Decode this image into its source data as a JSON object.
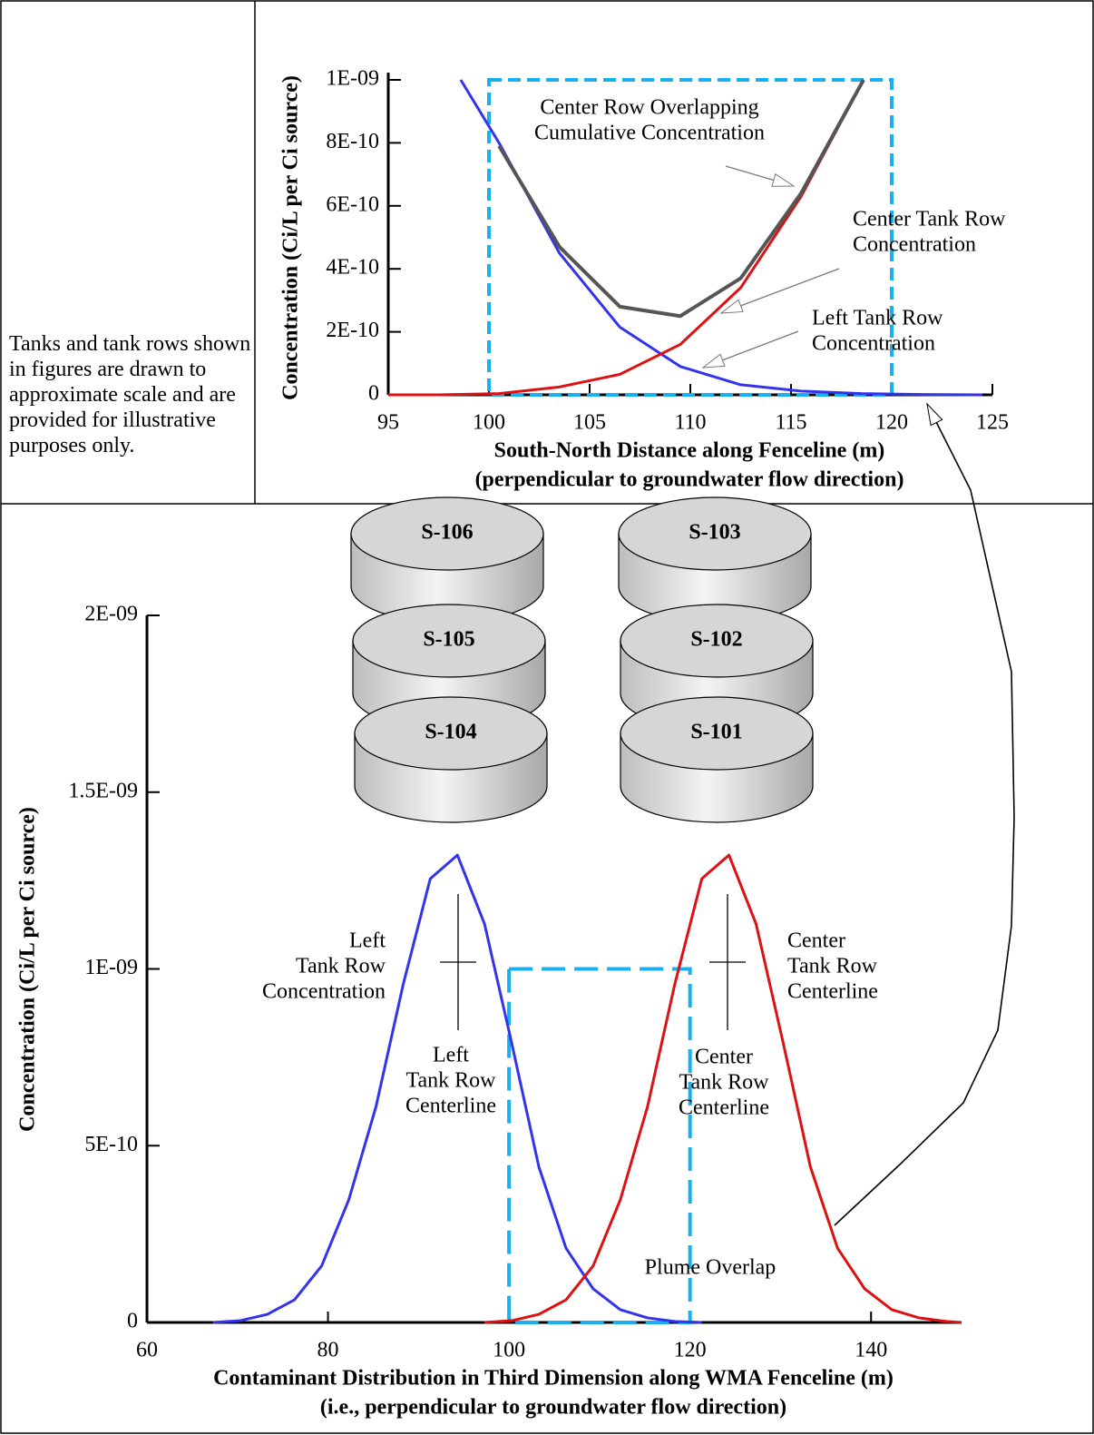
{
  "note": "Tanks and tank rows shown in figures are drawn to approximate scale and are provided for illustrative purposes only.",
  "tanks": [
    "S-106",
    "S-105",
    "S-104",
    "S-103",
    "S-102",
    "S-101"
  ],
  "chart_data": [
    {
      "type": "line",
      "xlabel": [
        "South-North Distance along Fenceline (m)",
        "(perpendicular to groundwater flow direction)"
      ],
      "ylabel": "Concentration (Ci/L per Ci source)",
      "xlim": [
        95,
        125
      ],
      "ylim": [
        0,
        1e-09
      ],
      "xticks": [
        95,
        100,
        105,
        110,
        115,
        120,
        125
      ],
      "yticks": [
        0,
        {
          "value": 2e-10,
          "label": "2E-10"
        },
        {
          "value": 4e-10,
          "label": "4E-10"
        },
        {
          "value": 6e-10,
          "label": "6E-10"
        },
        {
          "value": 8e-10,
          "label": "8E-10"
        },
        {
          "value": 1e-09,
          "label": "1E-09"
        }
      ],
      "series": [
        {
          "color": "#3333ee",
          "x": [
            98.6,
            100.5,
            103.5,
            106.5,
            109.5,
            112.5,
            115.5,
            118.5,
            121.5,
            124.5
          ],
          "values": [
            1e-09,
            8e-10,
            4.5e-10,
            2.15e-10,
            9e-11,
            3.2e-11,
            1.2e-11,
            4e-12,
            1e-12,
            0
          ]
        },
        {
          "color": "#dd1111",
          "x": [
            95,
            97.5,
            100.5,
            103.5,
            106.5,
            109.5,
            112.5,
            115.5,
            118.6
          ],
          "values": [
            0,
            0,
            4e-12,
            2.5e-11,
            6.5e-11,
            1.6e-10,
            3.4e-10,
            6.3e-10,
            1e-09
          ]
        },
        {
          "color": "#555555",
          "x": [
            100.5,
            103.5,
            106.5,
            109.5,
            112.5,
            115.5,
            118.6
          ],
          "values": [
            7.9e-10,
            4.7e-10,
            2.8e-10,
            2.5e-10,
            3.7e-10,
            6.4e-10,
            1e-09
          ]
        }
      ],
      "highlight": {
        "x": [
          100,
          120
        ],
        "y": [
          0,
          1e-09
        ],
        "color": "#1ab0ef"
      },
      "annotations": [
        [
          "Center Row Overlapping",
          "Cumulative Concentration"
        ],
        [
          "Center Tank Row",
          "Concentration"
        ],
        [
          "Left Tank Row",
          "Concentration"
        ]
      ]
    },
    {
      "type": "line",
      "xlabel": [
        "Contaminant Distribution in Third Dimension along WMA Fenceline (m)",
        "(i.e., perpendicular to groundwater flow direction)"
      ],
      "ylabel": "Concentration (Ci/L per Ci source)",
      "xlim": [
        60,
        150
      ],
      "ylim": [
        0,
        2e-09
      ],
      "xticks": [
        60,
        80,
        100,
        120,
        140
      ],
      "yticks": [
        0,
        {
          "value": 5e-10,
          "label": "5E-10"
        },
        {
          "value": 1e-09,
          "label": "1E-09"
        },
        {
          "value": 1.5e-09,
          "label": "1.5E-09"
        },
        {
          "value": 2e-09,
          "label": "2E-09"
        }
      ],
      "series": [
        {
          "color": "#3333ee",
          "x": [
            67.3,
            70.3,
            73.3,
            76.3,
            79.3,
            82.3,
            85.3,
            88.3,
            91.3,
            94.3,
            97.3,
            100.3,
            103.3,
            106.3,
            109.3,
            112.3,
            115.3,
            118.3,
            121.3
          ],
          "values": [
            0,
            5e-12,
            2.3e-11,
            6.4e-11,
            1.6e-10,
            3.47e-10,
            6.1e-10,
            9.55e-10,
            1.255e-09,
            1.322e-09,
            1.127e-09,
            7.9e-10,
            4.4e-10,
            2.1e-10,
            9.5e-11,
            3.6e-11,
            1.3e-11,
            3e-12,
            0
          ]
        },
        {
          "color": "#dd1111",
          "x": [
            97.3,
            100.3,
            103.3,
            106.3,
            109.3,
            112.3,
            115.3,
            118.3,
            121.3,
            124.3,
            127.3,
            130.3,
            133.3,
            136.3,
            139.3,
            142.3,
            145.3,
            148.3,
            150
          ],
          "values": [
            0,
            5e-12,
            2.3e-11,
            6.4e-11,
            1.6e-10,
            3.47e-10,
            6.1e-10,
            9.55e-10,
            1.255e-09,
            1.322e-09,
            1.127e-09,
            7.9e-10,
            4.4e-10,
            2.1e-10,
            9.5e-11,
            3.6e-11,
            1.3e-11,
            3e-12,
            0
          ]
        }
      ],
      "highlight": {
        "x": [
          100,
          120
        ],
        "y": [
          0,
          1e-09
        ],
        "color": "#1ab0ef"
      },
      "annotations": [
        [
          "Left",
          "Tank Row",
          "Concentration"
        ],
        [
          "Left",
          "Tank Row",
          "Centerline"
        ],
        [
          "Center",
          "Tank Row",
          "Centerline"
        ],
        [
          "Center",
          "Tank Row",
          "Centerline"
        ],
        [
          "Plume Overlap"
        ]
      ]
    }
  ]
}
